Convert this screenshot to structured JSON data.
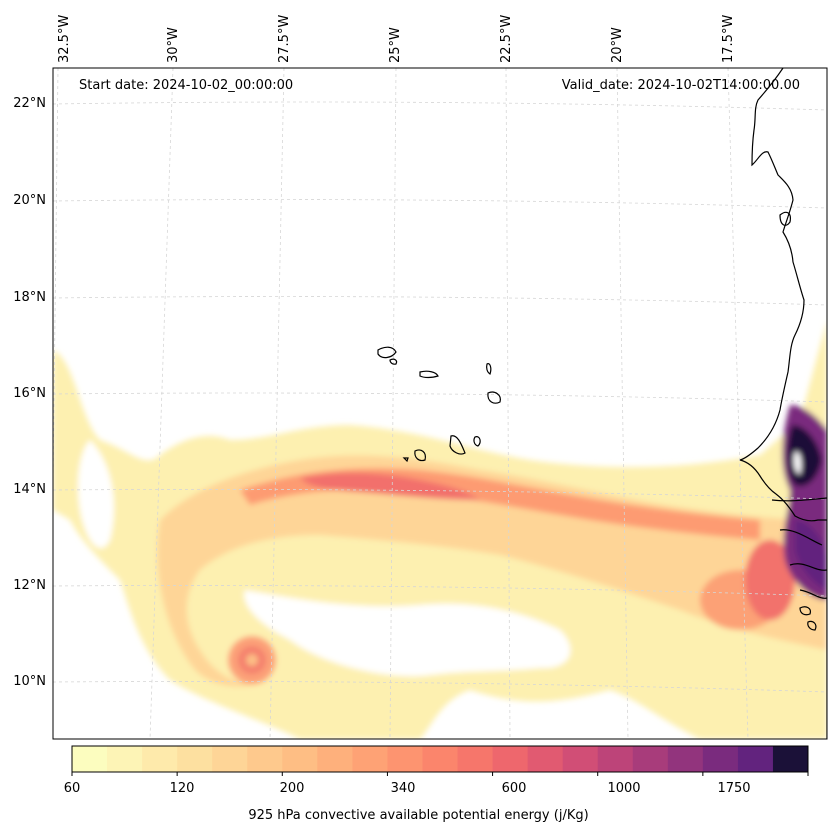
{
  "header": {
    "start_date": "Start date: 2024-10-02_00:00:00",
    "valid_date": "Valid_date: 2024-10-02T14:00:00.00"
  },
  "longitude_labels": [
    "32.5°W",
    "30°W",
    "27.5°W",
    "25°W",
    "22.5°W",
    "20°W",
    "17.5°W"
  ],
  "latitude_labels": [
    "22°N",
    "20°N",
    "18°N",
    "16°N",
    "14°N",
    "12°N",
    "10°N"
  ],
  "colorbar": {
    "title": "925 hPa convective available potential energy (j/Kg)",
    "tick_labels": [
      "60",
      "120",
      "200",
      "340",
      "600",
      "1000",
      "1750"
    ],
    "levels": [
      60,
      80,
      100,
      120,
      140,
      160,
      200,
      240,
      280,
      340,
      400,
      480,
      600,
      700,
      850,
      1000,
      1200,
      1450,
      1750,
      2100,
      2500
    ],
    "colors": [
      "#fcfdbf",
      "#fdf4b6",
      "#feeaab",
      "#fde0a0",
      "#fed597",
      "#fec98d",
      "#febe84",
      "#feb07c",
      "#fea275",
      "#fd9470",
      "#fb856c",
      "#f6766b",
      "#ee676d",
      "#e15a71",
      "#d14e76",
      "#bd4479",
      "#a83c7b",
      "#92347d",
      "#7a2b7e",
      "#62237e",
      "#1b1138"
    ]
  },
  "map": {
    "title": "",
    "projection": "lambert-conformal",
    "coastline_color": "#000000",
    "grid_color": "#cfcfcf"
  }
}
